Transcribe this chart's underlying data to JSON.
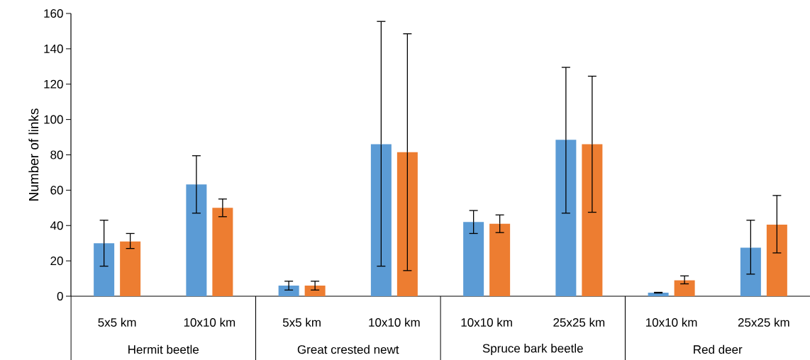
{
  "chart_data": {
    "type": "bar",
    "ylabel": "Number of links",
    "categories": [
      "5x5 km",
      "10x10 km",
      "5x5 km",
      "10x10 km",
      "10x10 km",
      "25x25 km",
      "10x10 km",
      "25x25 km"
    ],
    "annotations": [
      "Hermit beetle",
      "Great crested newt",
      "Spruce bark beetle",
      "Red deer"
    ],
    "series": [
      {
        "color": "#5b9bd5",
        "values": [
          30,
          63.3,
          6,
          86,
          42,
          88.5,
          2,
          27.5
        ],
        "errors": [
          [
            17,
            43
          ],
          [
            47,
            79.5
          ],
          [
            3.5,
            8.5
          ],
          [
            17,
            155.5
          ],
          [
            35.5,
            48.5
          ],
          [
            47,
            129.5
          ],
          [
            1.8,
            2.2
          ],
          [
            12.5,
            43
          ]
        ]
      },
      {
        "color": "#ed7d31",
        "values": [
          31,
          50,
          6,
          81.5,
          41,
          86,
          9,
          40.5
        ],
        "errors": [
          [
            27,
            35.5
          ],
          [
            45,
            55
          ],
          [
            3.5,
            8.5
          ],
          [
            14.5,
            148.5
          ],
          [
            36,
            46
          ],
          [
            47.5,
            124.5
          ],
          [
            7,
            11.5
          ],
          [
            24.5,
            57
          ]
        ]
      }
    ],
    "ylim": [
      0,
      160
    ],
    "yticks": [
      0,
      20,
      40,
      60,
      80,
      100,
      120,
      140,
      160
    ],
    "grid": false
  }
}
